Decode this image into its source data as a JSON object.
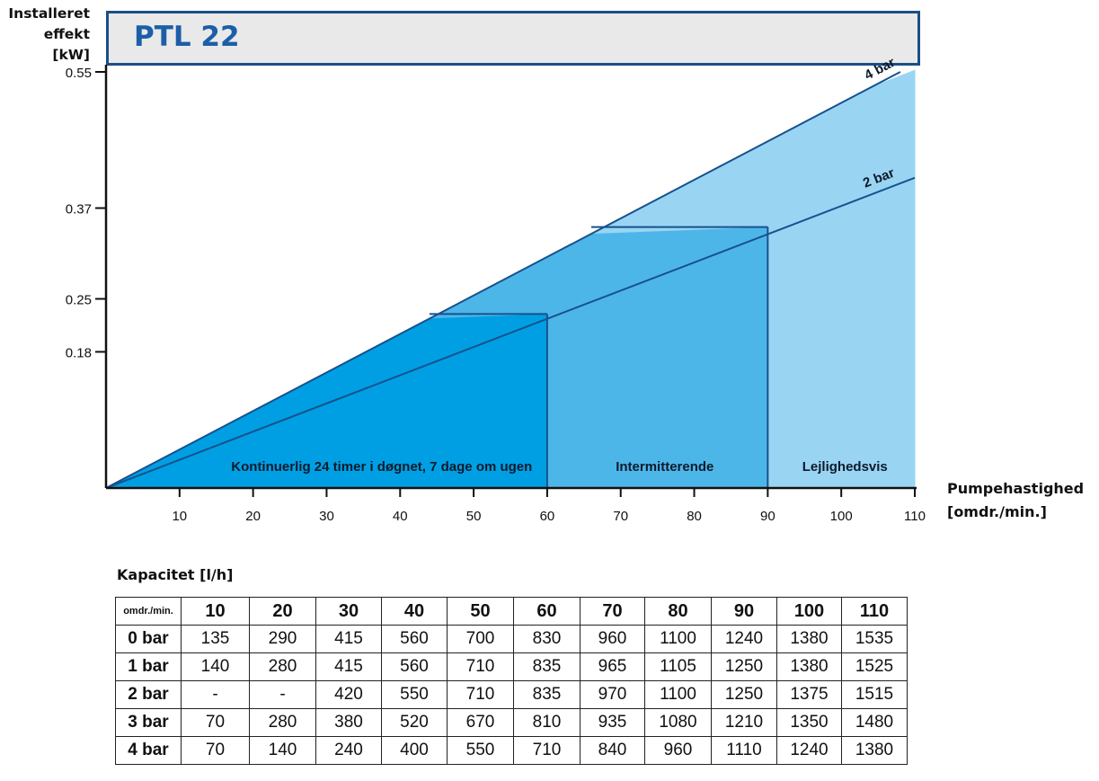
{
  "title": "PTL 22",
  "y_axis_label": [
    "Installeret",
    "effekt",
    "[kW]"
  ],
  "x_axis_label": [
    "Pumpehastighed",
    "[omdr./min.]"
  ],
  "chart_data": {
    "type": "area",
    "title": "PTL 22",
    "xlabel": "Pumpehastighed [omdr./min.]",
    "ylabel": "Installeret effekt [kW]",
    "x_ticks": [
      10,
      20,
      30,
      40,
      50,
      60,
      70,
      80,
      90,
      100,
      110
    ],
    "y_ticks": [
      0.18,
      0.25,
      0.37,
      0.55
    ],
    "y_tick_labels": [
      "0.18",
      "0.25",
      "0.37",
      "0.55"
    ],
    "xlim": [
      0,
      110
    ],
    "series": [
      {
        "name": "4 bar",
        "x": [
          0,
          110
        ],
        "y": [
          0,
          0.56
        ]
      },
      {
        "name": "2 bar",
        "x": [
          0,
          110
        ],
        "y": [
          0,
          0.41
        ]
      }
    ],
    "steps": [
      {
        "x": [
          44,
          60
        ],
        "y": 0.23
      },
      {
        "x": [
          66,
          90
        ],
        "y": 0.345
      }
    ],
    "regions": [
      {
        "label": "Kontinuerlig 24 timer i døgnet, 7 dage om ugen",
        "x_from": 0,
        "x_to": 60,
        "color": "#009fe3"
      },
      {
        "label": "Intermitterende",
        "x_from": 60,
        "x_to": 90,
        "color": "#4db6e9"
      },
      {
        "label": "Lejlighedsvis",
        "x_from": 90,
        "x_to": 110,
        "color": "#99d5f3"
      }
    ]
  },
  "table": {
    "title": "Kapacitet [l/h]",
    "corner": "omdr./min.",
    "columns": [
      "10",
      "20",
      "30",
      "40",
      "50",
      "60",
      "70",
      "80",
      "90",
      "100",
      "110"
    ],
    "rows": [
      {
        "label": "0 bar",
        "values": [
          "135",
          "290",
          "415",
          "560",
          "700",
          "830",
          "960",
          "1100",
          "1240",
          "1380",
          "1535"
        ]
      },
      {
        "label": "1 bar",
        "values": [
          "140",
          "280",
          "415",
          "560",
          "710",
          "835",
          "965",
          "1105",
          "1250",
          "1380",
          "1525"
        ]
      },
      {
        "label": "2 bar",
        "values": [
          "-",
          "-",
          "420",
          "550",
          "710",
          "835",
          "970",
          "1100",
          "1250",
          "1375",
          "1515"
        ]
      },
      {
        "label": "3 bar",
        "values": [
          "70",
          "280",
          "380",
          "520",
          "670",
          "810",
          "935",
          "1080",
          "1210",
          "1350",
          "1480"
        ]
      },
      {
        "label": "4 bar",
        "values": [
          "70",
          "140",
          "240",
          "400",
          "550",
          "710",
          "840",
          "960",
          "1110",
          "1240",
          "1380"
        ]
      }
    ]
  }
}
